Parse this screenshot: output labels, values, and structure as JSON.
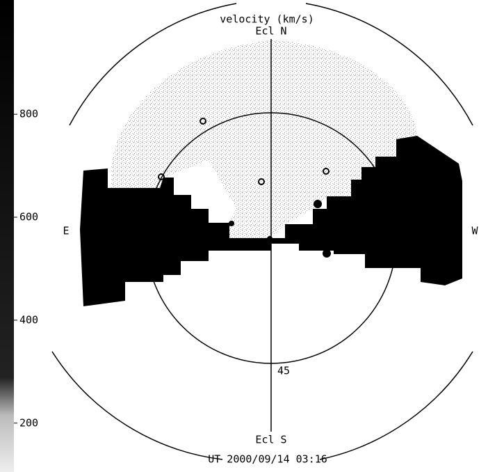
{
  "colorbar": {
    "title": "velocity (km/s)",
    "lim": [
      105,
      1022
    ],
    "ticks": [
      200,
      400,
      600,
      800
    ]
  },
  "labels": {
    "north": "Ecl N",
    "south": "Ecl S",
    "east": "E",
    "west": "W",
    "inner_circle": "45"
  },
  "timestamp": "UT 2000/09/14 03:16"
}
